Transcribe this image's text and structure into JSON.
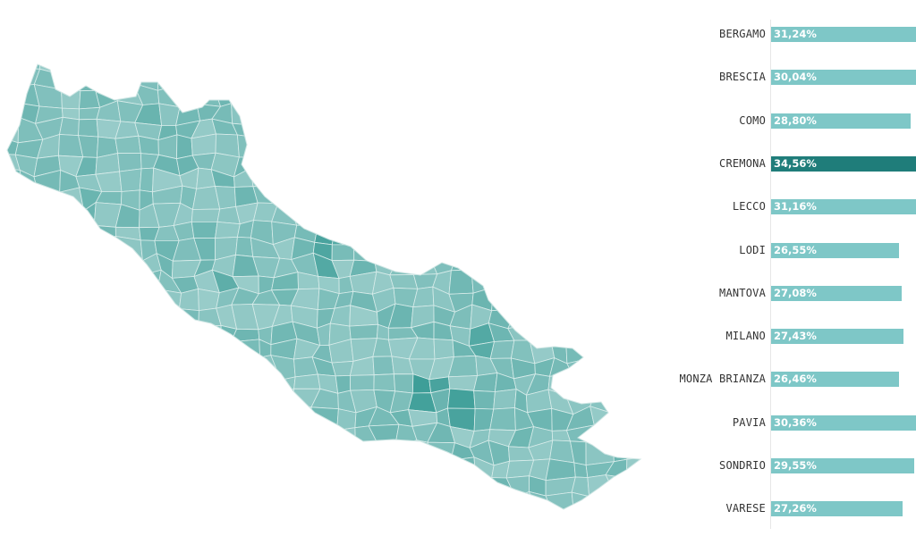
{
  "colors": {
    "bar": "#7ec7c7",
    "bar_highlight": "#1f7d7a",
    "map_low": "#a8d4d2",
    "map_high": "#3e9e98",
    "map_border": "#d8ecea"
  },
  "chart_data": {
    "type": "bar",
    "orientation": "horizontal",
    "categories": [
      "BERGAMO",
      "BRESCIA",
      "COMO",
      "CREMONA",
      "LECCO",
      "LODI",
      "MANTOVA",
      "MILANO",
      "MONZA BRIANZA",
      "PAVIA",
      "SONDRIO",
      "VARESE"
    ],
    "values": [
      31.24,
      30.04,
      28.8,
      34.56,
      31.16,
      26.55,
      27.08,
      27.43,
      26.46,
      30.36,
      29.55,
      27.26
    ],
    "value_labels": [
      "31,24%",
      "30,04%",
      "28,80%",
      "34,56%",
      "31,16%",
      "26,55%",
      "27,08%",
      "27,43%",
      "26,46%",
      "30,36%",
      "29,55%",
      "27,26%"
    ],
    "highlighted": "CREMONA",
    "xlim": [
      0,
      30
    ]
  }
}
